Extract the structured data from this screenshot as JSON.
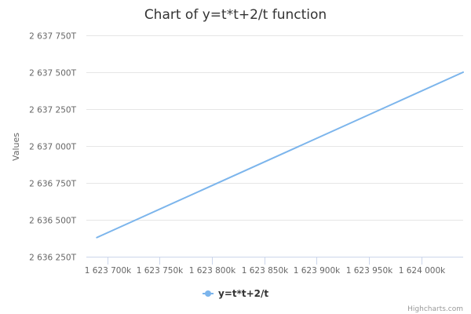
{
  "chart_data": {
    "type": "line",
    "title": "Chart of y=t*t+2/t function",
    "ylabel": "Values",
    "xlabel": "",
    "x_range": [
      1623680000,
      1624040000
    ],
    "ylim": [
      2636250000000000000,
      2637750000000000000
    ],
    "x_ticks": [
      1623700000,
      1623750000,
      1623800000,
      1623850000,
      1623900000,
      1623950000,
      1624000000
    ],
    "x_tick_labels": [
      "1 623 700k",
      "1 623 750k",
      "1 623 800k",
      "1 623 850k",
      "1 623 900k",
      "1 623 950k",
      "1 624 000k"
    ],
    "y_ticks": [
      2636250000000000000,
      2636500000000000000,
      2636750000000000000,
      2637000000000000000,
      2637250000000000000,
      2637500000000000000,
      2637750000000000000
    ],
    "y_tick_labels": [
      "2 636 250T",
      "2 636 500T",
      "2 636 750T",
      "2 637 000T",
      "2 637 250T",
      "2 637 500T",
      "2 637 750T"
    ],
    "grid": true,
    "legend_position": "bottom-center",
    "series": [
      {
        "name": "y=t*t+2/t",
        "color": "#7cb5ec",
        "x": [
          1623690000,
          1624040000
        ],
        "y": [
          2636380000000000000,
          2637500000000000000
        ]
      }
    ]
  },
  "credits": "Highcharts.com"
}
